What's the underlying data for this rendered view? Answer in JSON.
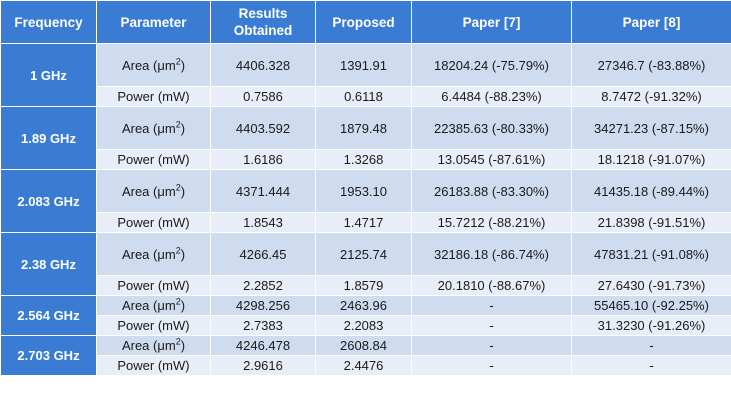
{
  "table": {
    "headers": [
      "Frequency",
      "Parameter",
      "Results Obtained",
      "Proposed",
      "Paper [7]",
      "Paper [8]"
    ],
    "area_label": "Area (μm",
    "area_sup": "2",
    "area_suffix": ")",
    "power_label": "Power (mW)",
    "rows": [
      {
        "frequency": "1 GHz",
        "area": {
          "results": "4406.328",
          "proposed": "1391.91",
          "paper7": "18204.24 (-75.79%)",
          "paper8": "27346.7 (-83.88%)"
        },
        "power": {
          "results": "0.7586",
          "proposed": "0.6118",
          "paper7": "6.4484 (-88.23%)",
          "paper8": "8.7472 (-91.32%)"
        }
      },
      {
        "frequency": "1.89 GHz",
        "area": {
          "results": "4403.592",
          "proposed": "1879.48",
          "paper7": "22385.63 (-80.33%)",
          "paper8": "34271.23 (-87.15%)"
        },
        "power": {
          "results": "1.6186",
          "proposed": "1.3268",
          "paper7": "13.0545 (-87.61%)",
          "paper8": "18.1218 (-91.07%)"
        }
      },
      {
        "frequency": "2.083 GHz",
        "area": {
          "results": "4371.444",
          "proposed": "1953.10",
          "paper7": "26183.88 (-83.30%)",
          "paper8": "41435.18 (-89.44%)"
        },
        "power": {
          "results": "1.8543",
          "proposed": "1.4717",
          "paper7": "15.7212 (-88.21%)",
          "paper8": "21.8398 (-91.51%)"
        }
      },
      {
        "frequency": "2.38 GHz",
        "area": {
          "results": "4266.45",
          "proposed": "2125.74",
          "paper7": "32186.18 (-86.74%)",
          "paper8": "47831.21 (-91.08%)"
        },
        "power": {
          "results": "2.2852",
          "proposed": "1.8579",
          "paper7": "20.1810 (-88.67%)",
          "paper8": "27.6430 (-91.73%)"
        }
      },
      {
        "frequency": "2.564 GHz",
        "area": {
          "results": "4298.256",
          "proposed": "2463.96",
          "paper7": "-",
          "paper8": "55465.10 (-92.25%)"
        },
        "power": {
          "results": "2.7383",
          "proposed": "2.2083",
          "paper7": "-",
          "paper8": "31.3230 (-91.26%)"
        }
      },
      {
        "frequency": "2.703 GHz",
        "area": {
          "results": "4246.478",
          "proposed": "2608.84",
          "paper7": "-",
          "paper8": "-"
        },
        "power": {
          "results": "2.9616",
          "proposed": "2.4476",
          "paper7": "-",
          "paper8": "-"
        }
      }
    ]
  }
}
